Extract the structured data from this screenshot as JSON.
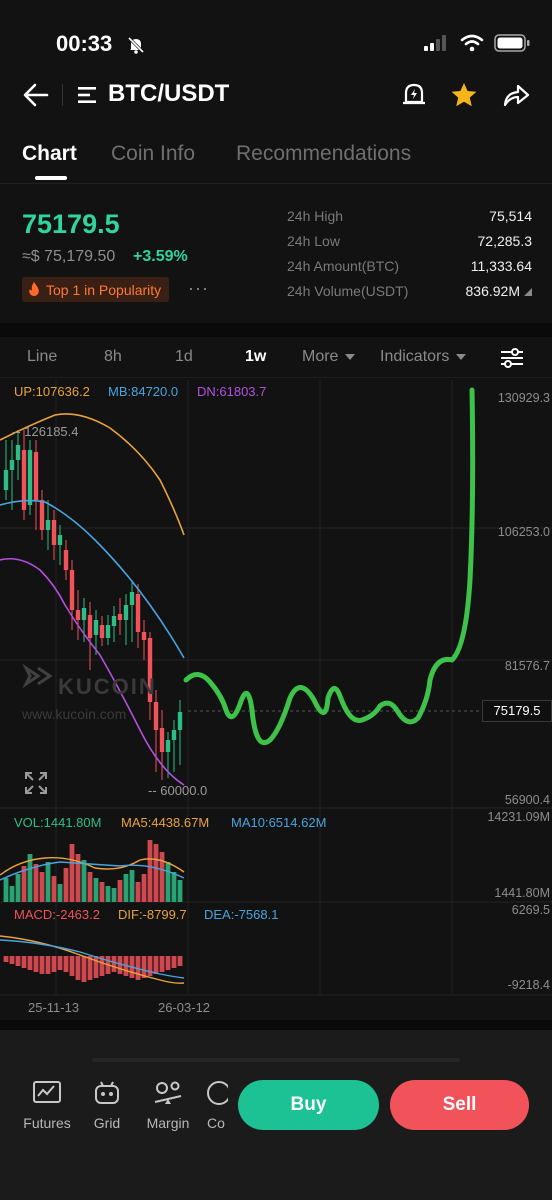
{
  "status": {
    "time": "00:33"
  },
  "nav": {
    "title": "BTC/USDT"
  },
  "tabs": [
    {
      "label": "Chart"
    },
    {
      "label": "Coin Info"
    },
    {
      "label": "Recommendations"
    }
  ],
  "ticker": {
    "last_price": "75179.5",
    "fiat_price": "≈$ 75,179.50",
    "change": "+3.59%",
    "badge": "Top 1 in Popularity",
    "more": "···",
    "stats": [
      {
        "label": "24h High",
        "value": "75,514"
      },
      {
        "label": "24h Low",
        "value": "72,285.3"
      },
      {
        "label": "24h Amount(BTC)",
        "value": "11,333.64"
      },
      {
        "label": "24h Volume(USDT)",
        "value": "836.92M"
      }
    ]
  },
  "intervals": {
    "line": "Line",
    "h8": "8h",
    "d1": "1d",
    "w1": "1w",
    "more": "More",
    "indicators": "Indicators"
  },
  "chart": {
    "bb": {
      "up": "UP:107636.2",
      "mb": "MB:84720.0",
      "dn": "DN:61803.7"
    },
    "high_marker": "126185.4",
    "low_marker": "60000.0",
    "y_axis": [
      "130929.3",
      "106253.0",
      "81576.7",
      "56900.4"
    ],
    "current_price": "75179.5",
    "watermark": "KUCOIN",
    "watermark_url": "www.kucoin.com",
    "vol_legend": {
      "vol": "VOL:1441.80M",
      "ma5": "MA5:4438.67M",
      "ma10": "MA10:6514.62M"
    },
    "vol_axis": [
      "14231.09M",
      "1441.80M"
    ],
    "macd_legend": {
      "macd": "MACD:-2463.2",
      "dif": "DIF:-8799.7",
      "dea": "DEA:-7568.1"
    },
    "macd_axis": [
      "6269.5",
      "-9218.4"
    ],
    "dates": [
      "25-11-13",
      "26-03-12"
    ],
    "colors": {
      "up": "#2ebd85",
      "down": "#f2525a",
      "bb_up": "#e8a33d",
      "bb_mid": "#4aa3df",
      "bb_dn": "#b44fe0",
      "drawing": "#3ec24a"
    }
  },
  "bottom": {
    "tools": [
      {
        "label": "Futures",
        "icon": "futures-chart-icon"
      },
      {
        "label": "Grid",
        "icon": "grid-bot-icon"
      },
      {
        "label": "Margin",
        "icon": "margin-icon"
      },
      {
        "label": "Co",
        "icon": "copy-trading-icon"
      }
    ],
    "buy": "Buy",
    "sell": "Sell"
  }
}
